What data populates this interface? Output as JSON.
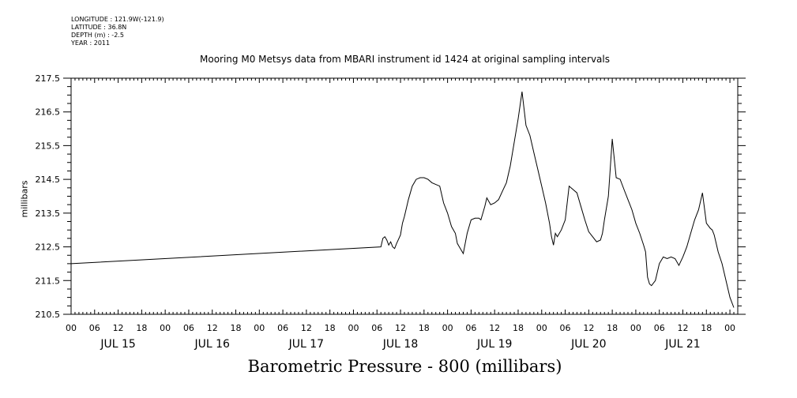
{
  "header": {
    "longitude": "LONGITUDE : 121.9W(-121.9)",
    "latitude": "LATITUDE : 36.8N",
    "depth": "DEPTH (m) : -2.5",
    "year": "YEAR : 2011"
  },
  "chart_data": {
    "type": "line",
    "title": "Mooring M0 Metsys data from MBARI instrument id 1424 at original sampling intervals",
    "xlabel": "Barometric Pressure - 800 (millibars)",
    "ylabel": "millibars",
    "ylim": [
      210.5,
      217.5
    ],
    "yticks": [
      "217.5",
      "216.5",
      "215.5",
      "214.5",
      "213.5",
      "212.5",
      "211.5",
      "210.5"
    ],
    "xlim_hours": [
      0,
      170
    ],
    "x_hour_ticks": [
      "00",
      "06",
      "12",
      "18",
      "00",
      "06",
      "12",
      "18",
      "00",
      "06",
      "12",
      "18",
      "00",
      "06",
      "12",
      "18",
      "00",
      "06",
      "12",
      "18",
      "00",
      "06",
      "12",
      "18",
      "00",
      "06",
      "12",
      "18",
      "00"
    ],
    "day_labels": [
      "JUL 15",
      "JUL 16",
      "JUL 17",
      "JUL 18",
      "JUL 19",
      "JUL 20",
      "JUL 21"
    ],
    "grid": false,
    "series": [
      {
        "x_hours": [
          0,
          79,
          79.5,
          80,
          80.5,
          81,
          81.5,
          82,
          82.5,
          83,
          84,
          84.5,
          85,
          86,
          87,
          88,
          89,
          90,
          91,
          92,
          93,
          94,
          95,
          96,
          97,
          98,
          98.5,
          99,
          100,
          101,
          102,
          103,
          104,
          104.5,
          105,
          105.5,
          106,
          107,
          108,
          109,
          110,
          111,
          112,
          113,
          114,
          115,
          116,
          117,
          118,
          119,
          120,
          121,
          122,
          122.5,
          123,
          123.5,
          124,
          125,
          126,
          127,
          128,
          129,
          130,
          131,
          132,
          133,
          134,
          135,
          135.5,
          136,
          137,
          138,
          139,
          140,
          141,
          142,
          143,
          144,
          145,
          146,
          146.5,
          147,
          147.5,
          148,
          149,
          150,
          151,
          152,
          153,
          154,
          155,
          156,
          157,
          158,
          159,
          160,
          161,
          162,
          163,
          163.5,
          164,
          164.5,
          165,
          166,
          167,
          168,
          169
        ],
        "values": [
          212.0,
          212.5,
          212.75,
          212.8,
          212.7,
          212.55,
          212.65,
          212.5,
          212.45,
          212.6,
          212.85,
          213.2,
          213.4,
          213.9,
          214.3,
          214.5,
          214.55,
          214.55,
          214.5,
          214.4,
          214.35,
          214.3,
          213.8,
          213.5,
          213.1,
          212.9,
          212.6,
          212.5,
          212.3,
          212.9,
          213.3,
          213.35,
          213.35,
          213.3,
          213.5,
          213.7,
          213.95,
          213.75,
          213.8,
          213.9,
          214.15,
          214.4,
          214.9,
          215.6,
          216.3,
          217.1,
          216.1,
          215.8,
          215.3,
          214.8,
          214.3,
          213.8,
          213.2,
          212.8,
          212.55,
          212.9,
          212.8,
          213.0,
          213.3,
          214.3,
          214.2,
          214.1,
          213.7,
          213.3,
          212.95,
          212.8,
          212.65,
          212.7,
          212.9,
          213.3,
          214.0,
          215.7,
          214.55,
          214.5,
          214.2,
          213.9,
          213.6,
          213.2,
          212.9,
          212.55,
          212.35,
          211.6,
          211.4,
          211.35,
          211.5,
          212.0,
          212.2,
          212.15,
          212.2,
          212.15,
          211.95,
          212.2,
          212.5,
          212.9,
          213.3,
          213.6,
          214.1,
          213.2,
          213.05,
          213.0,
          212.85,
          212.6,
          212.35,
          212.0,
          211.5,
          211.0,
          210.7
        ]
      }
    ]
  }
}
